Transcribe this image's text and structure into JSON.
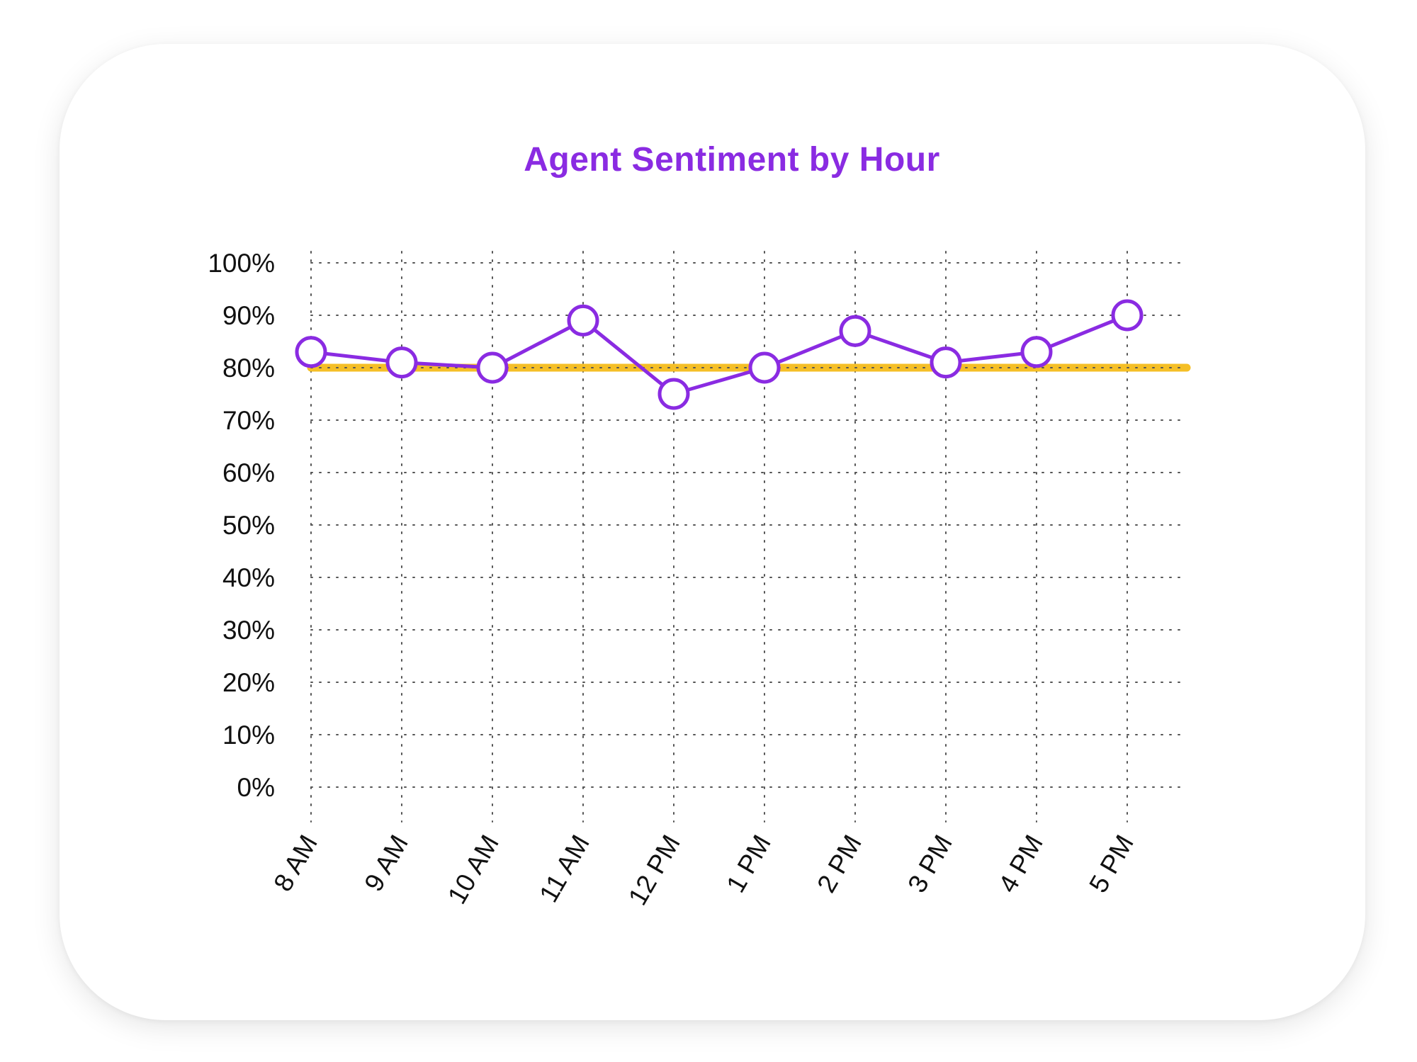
{
  "chart_data": {
    "type": "line",
    "title": "Agent Sentiment by Hour",
    "categories": [
      "8 AM",
      "9 AM",
      "10 AM",
      "11 AM",
      "12 PM",
      "1 PM",
      "2 PM",
      "3 PM",
      "4 PM",
      "5 PM"
    ],
    "series": [
      {
        "values": [
          83,
          81,
          80,
          89,
          75,
          80,
          87,
          81,
          83,
          90
        ],
        "color": "#8a2be2"
      }
    ],
    "reference_line": {
      "value": 80,
      "color": "#f5bf26"
    },
    "y_ticks": [
      "0%",
      "10%",
      "20%",
      "30%",
      "40%",
      "50%",
      "60%",
      "70%",
      "80%",
      "90%",
      "100%"
    ],
    "ylim": [
      0,
      100
    ],
    "grid": true,
    "title_color": "#8a2be2",
    "xlabel": "",
    "ylabel": ""
  }
}
